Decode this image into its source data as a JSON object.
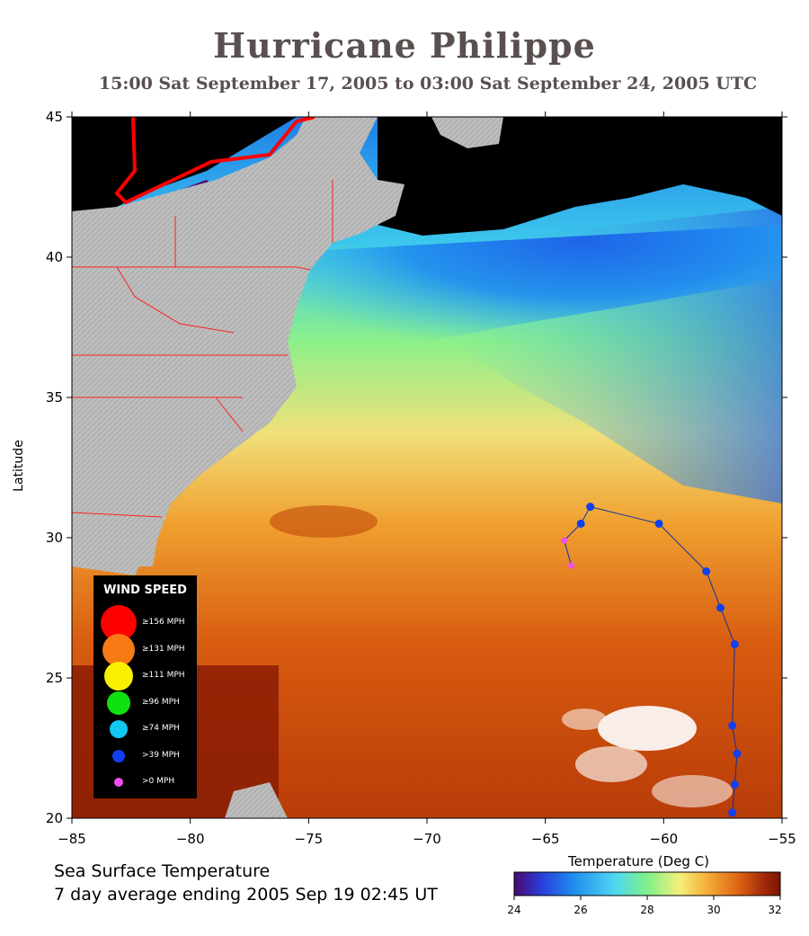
{
  "title": "Hurricane Philippe",
  "subtitle": "15:00 Sat September 17, 2005 to 03:00 Sat September 24, 2005  UTC",
  "ylabel": "Latitude",
  "caption_line1": "Sea Surface Temperature",
  "caption_line2": "7 day average ending 2005 Sep 19 02:45 UT",
  "colorbar": {
    "title": "Temperature (Deg C)",
    "ticks": [
      "24",
      "26",
      "28",
      "30",
      "32"
    ],
    "colors": [
      "#4b0a6e",
      "#2a3bd9",
      "#1f8cf0",
      "#4fd8f0",
      "#7ff08a",
      "#f5f07a",
      "#f5b23c",
      "#e06514",
      "#a02a08",
      "#7a1404"
    ]
  },
  "map_axes": {
    "lon_ticks": [
      "−85",
      "−80",
      "−75",
      "−70",
      "−65",
      "−60",
      "−55"
    ],
    "lat_ticks": [
      "45",
      "40",
      "35",
      "30",
      "25",
      "20"
    ],
    "lon_range": [
      -85,
      -55
    ],
    "lat_range": [
      20,
      45
    ]
  },
  "legend": {
    "title": "WIND SPEED",
    "items": [
      {
        "label": "≥156 MPH",
        "color": "#ff0000"
      },
      {
        "label": "≥131 MPH",
        "color": "#f87a14"
      },
      {
        "label": "≥111 MPH",
        "color": "#f8f000"
      },
      {
        "label": "≥96 MPH",
        "color": "#10e010"
      },
      {
        "label": "≥74 MPH",
        "color": "#10c8f0"
      },
      {
        "label": ">39 MPH",
        "color": "#1040f0"
      },
      {
        "label": ">0 MPH",
        "color": "#f050f0"
      }
    ]
  },
  "track": [
    {
      "lon": -57.1,
      "lat": 20.2,
      "cat": ">39"
    },
    {
      "lon": -57.0,
      "lat": 21.2,
      "cat": ">39"
    },
    {
      "lon": -56.9,
      "lat": 22.3,
      "cat": ">39"
    },
    {
      "lon": -57.1,
      "lat": 23.3,
      "cat": ">39"
    },
    {
      "lon": -57.0,
      "lat": 26.2,
      "cat": ">39"
    },
    {
      "lon": -57.6,
      "lat": 27.5,
      "cat": ">39"
    },
    {
      "lon": -58.2,
      "lat": 28.8,
      "cat": ">39"
    },
    {
      "lon": -60.2,
      "lat": 30.5,
      "cat": ">39"
    },
    {
      "lon": -63.1,
      "lat": 31.1,
      "cat": ">39"
    },
    {
      "lon": -63.5,
      "lat": 30.5,
      "cat": ">39"
    },
    {
      "lon": -64.2,
      "lat": 29.9,
      "cat": ">0"
    },
    {
      "lon": -63.9,
      "lat": 29.0,
      "cat": ">0"
    }
  ]
}
